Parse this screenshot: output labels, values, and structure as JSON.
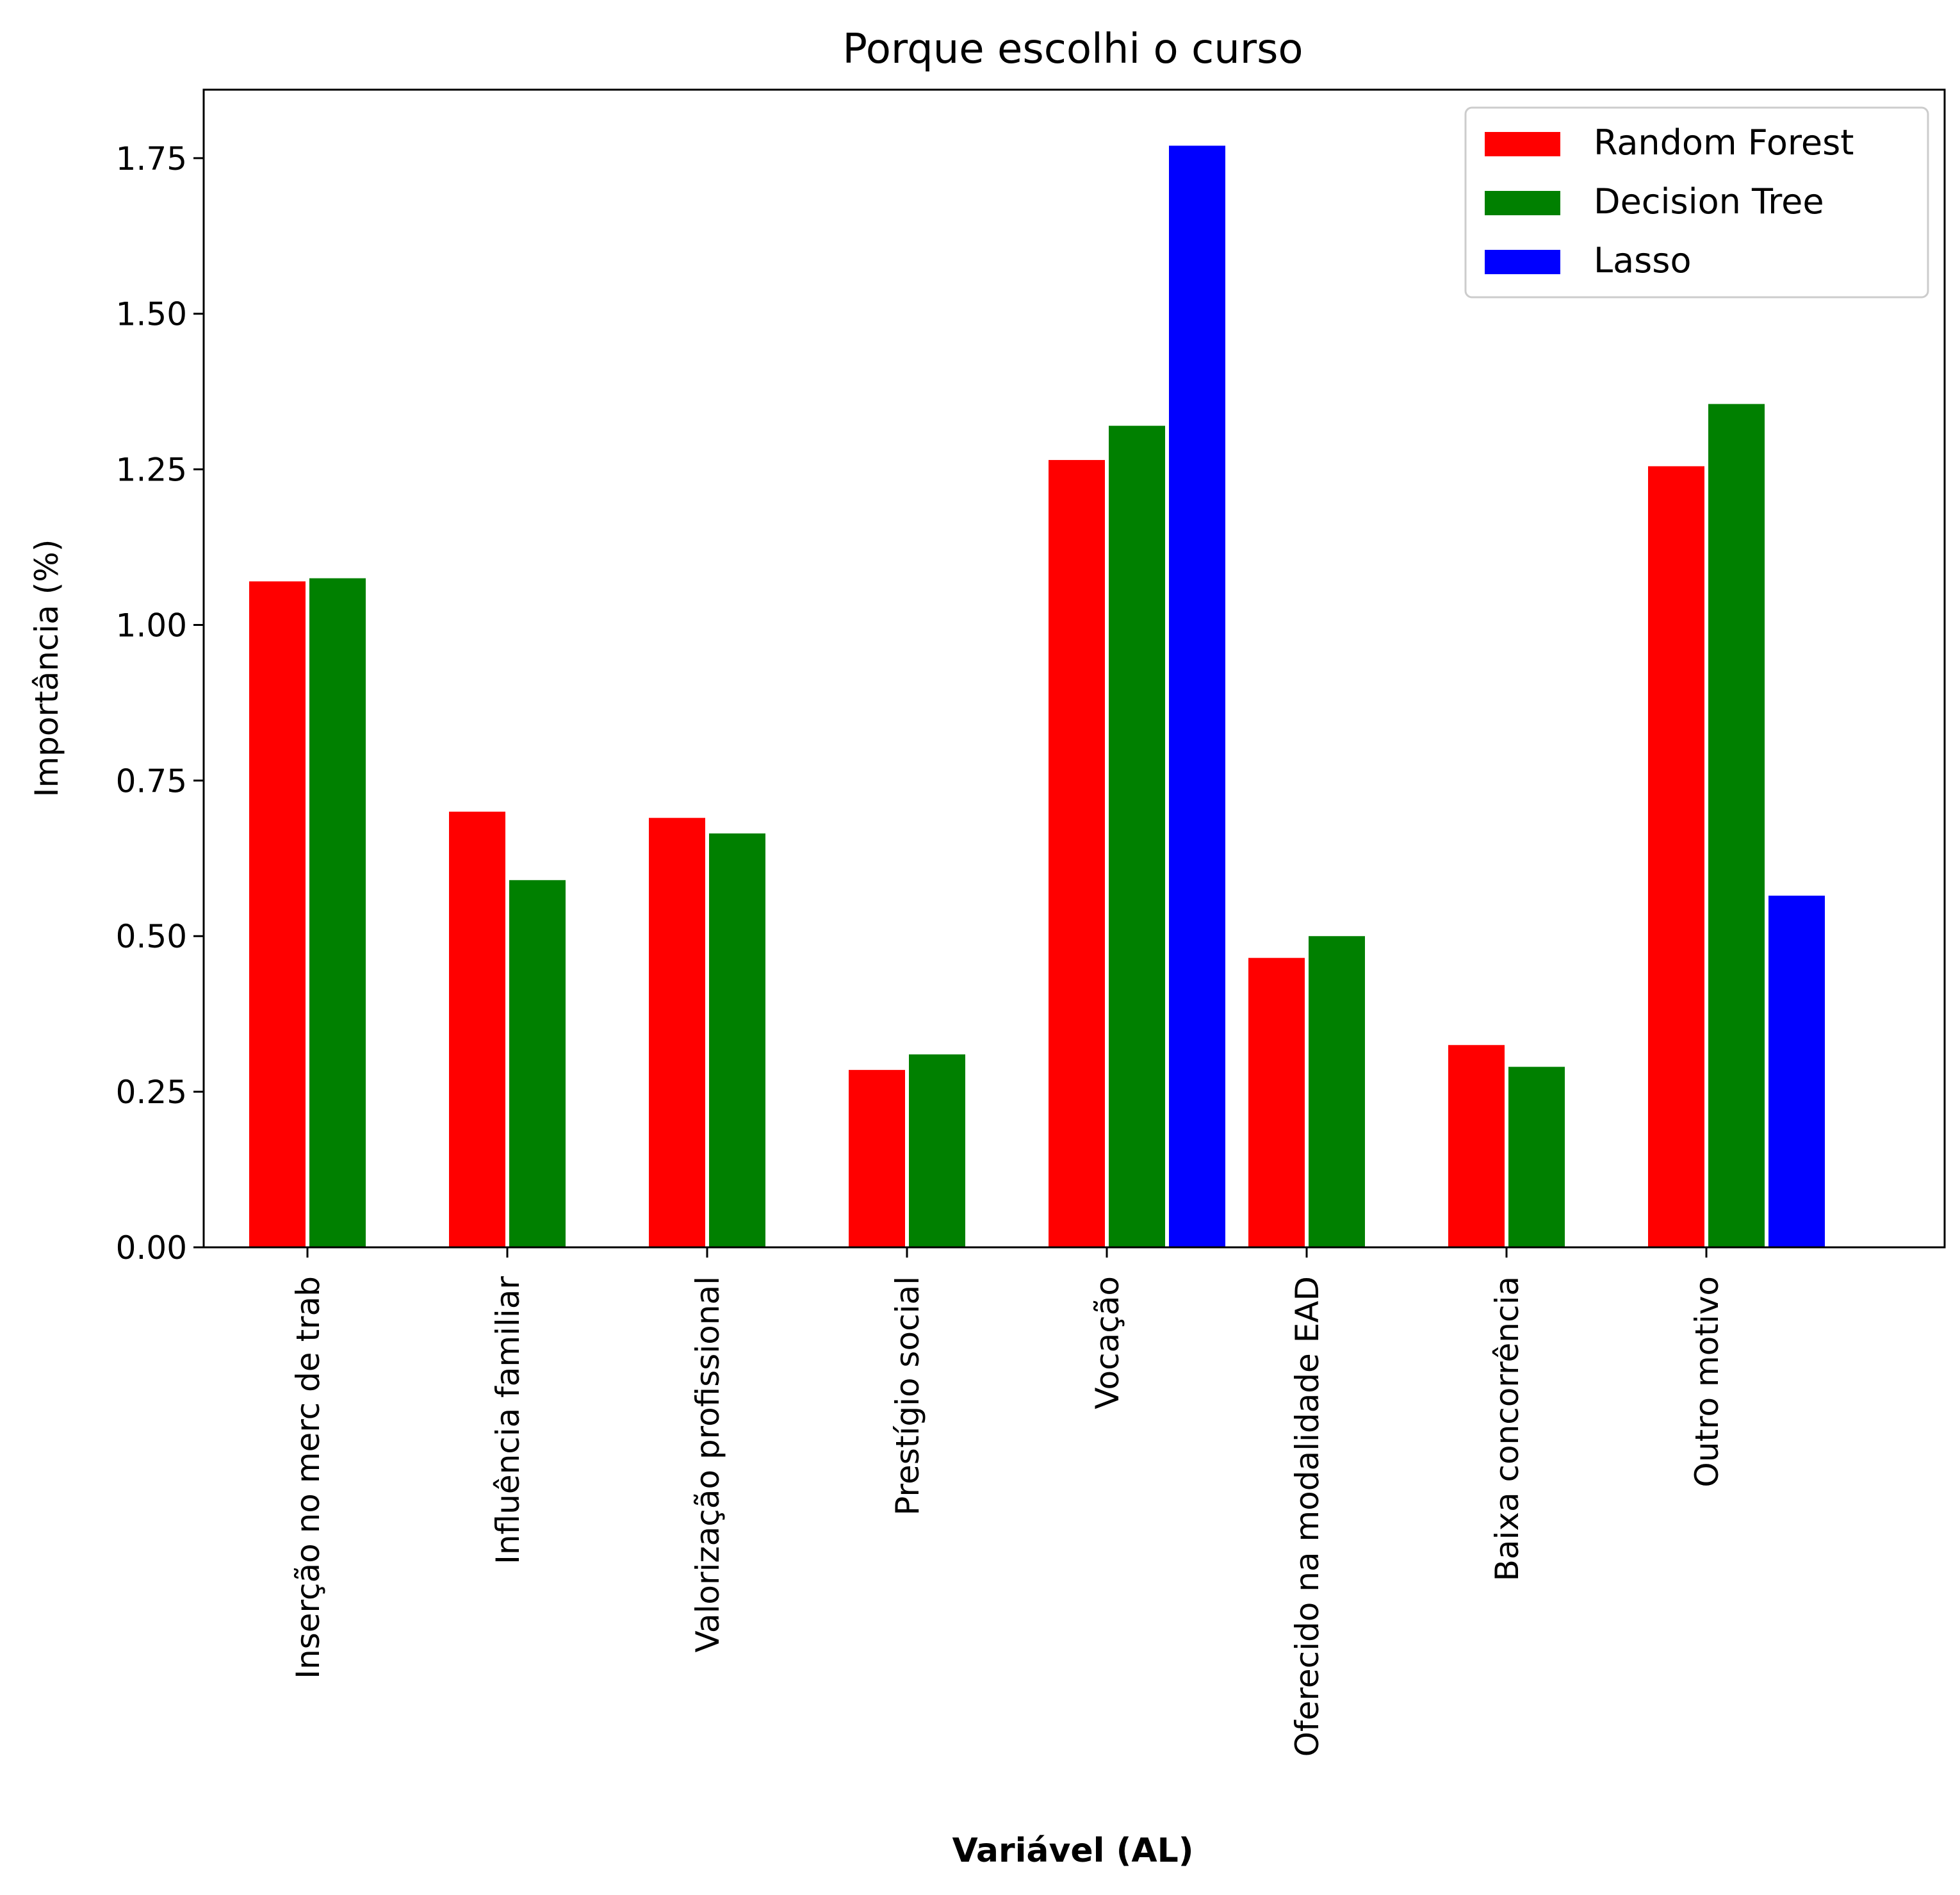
{
  "chart_data": {
    "type": "bar",
    "title": "Porque escolhi o curso",
    "xlabel": "Variável (AL)",
    "ylabel": "Importância (%)",
    "categories": [
      "Inserção no merc de trab",
      "Influência familiar",
      "Valorização profissional",
      "Prestígio social",
      "Vocação",
      "Oferecido na modalidade EAD",
      "Baixa concorrência",
      "Outro motivo"
    ],
    "series": [
      {
        "name": "Random Forest",
        "color": "#ff0000",
        "values": [
          1.07,
          0.7,
          0.69,
          0.285,
          1.265,
          0.465,
          0.325,
          1.255
        ]
      },
      {
        "name": "Decision Tree",
        "color": "#008000",
        "values": [
          1.075,
          0.59,
          0.665,
          0.31,
          1.32,
          0.5,
          0.29,
          1.355
        ]
      },
      {
        "name": "Lasso",
        "color": "#0000ff",
        "values": [
          0,
          0,
          0,
          0,
          1.77,
          0,
          0,
          0.565
        ]
      }
    ],
    "ylim": [
      0,
      1.86
    ],
    "yticks": [
      "0.00",
      "0.25",
      "0.50",
      "0.75",
      "1.00",
      "1.25",
      "1.50",
      "1.75"
    ],
    "grid": false,
    "legend": "top-right"
  }
}
